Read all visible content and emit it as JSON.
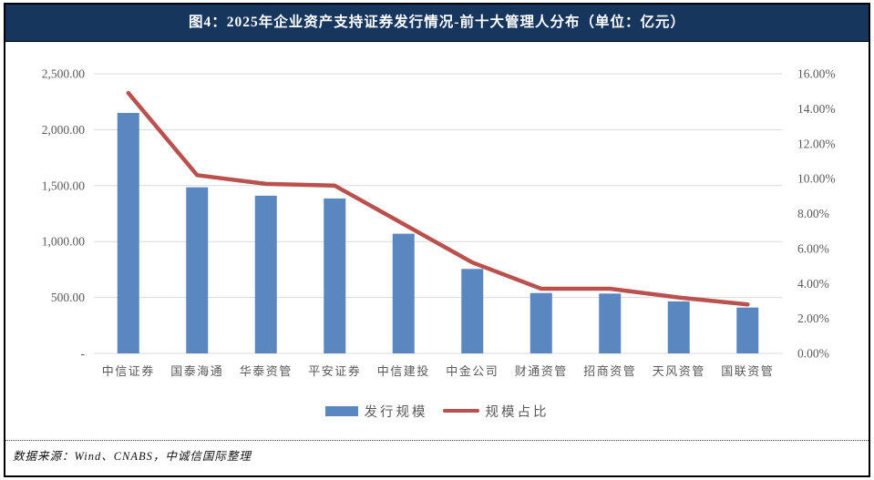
{
  "window": {
    "title": "图4：2025年企业资产支持证券发行情况-前十大管理人分布（单位：亿元）"
  },
  "source_note": "数据来源：Wind、CNABS，中诚信国际整理",
  "colors": {
    "title_bar_bg": "#17365D",
    "title_text": "#FFFFFF",
    "bar_fill": "#5B87C1",
    "line_stroke": "#B9524E",
    "axis_text": "#595959",
    "gridline": "#D9D9D9",
    "frame_border": "#000000"
  },
  "chart_data": {
    "type": "bar",
    "subtype": "combo-bar-line-dual-axis",
    "title": "图4：2025年企业资产支持证券发行情况-前十大管理人分布（单位：亿元）",
    "categories": [
      "中信证券",
      "国泰海通",
      "华泰资管",
      "平安证券",
      "中信建投",
      "中金公司",
      "财通资管",
      "招商资管",
      "天风资管",
      "国联资管"
    ],
    "series": [
      {
        "name": "发行规模",
        "type": "bar",
        "axis": "left",
        "values": [
          2150,
          1485,
          1410,
          1385,
          1070,
          755,
          540,
          535,
          465,
          410
        ]
      },
      {
        "name": "规模占比",
        "type": "line",
        "axis": "right",
        "values": [
          14.9,
          10.2,
          9.7,
          9.6,
          7.4,
          5.2,
          3.7,
          3.7,
          3.2,
          2.8
        ]
      }
    ],
    "left_axis": {
      "min": 0,
      "max": 2500,
      "tick_labels": [
        "-",
        "500.00",
        "1,000.00",
        "1,500.00",
        "2,000.00",
        "2,500.00"
      ]
    },
    "right_axis": {
      "min": 0,
      "max": 16,
      "tick_labels": [
        "0.00%",
        "2.00%",
        "4.00%",
        "6.00%",
        "8.00%",
        "10.00%",
        "12.00%",
        "14.00%",
        "16.00%"
      ]
    },
    "grid": "horizontal",
    "legend_position": "bottom-center",
    "xlabel": "",
    "ylabel_left": "亿元",
    "ylabel_right": "%"
  }
}
